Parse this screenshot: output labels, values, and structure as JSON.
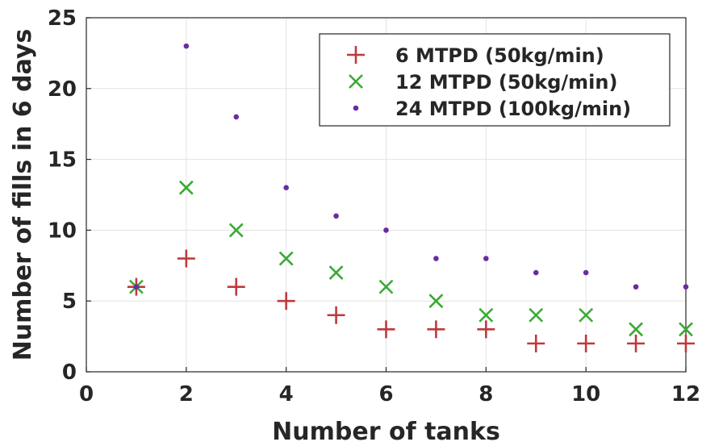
{
  "chart_data": {
    "type": "scatter",
    "title": "",
    "xlabel": "Number of tanks",
    "ylabel": "Number of fills in 6 days",
    "xlim": [
      0,
      12
    ],
    "ylim": [
      0,
      25
    ],
    "xticks": [
      0,
      2,
      4,
      6,
      8,
      10,
      12
    ],
    "yticks": [
      0,
      5,
      10,
      15,
      20,
      25
    ],
    "grid": true,
    "legend_position": "top-right",
    "x": [
      1,
      2,
      3,
      4,
      5,
      6,
      7,
      8,
      9,
      10,
      11,
      12
    ],
    "series": [
      {
        "name": "6 MTPD (50kg/min)",
        "marker": "plus",
        "color": "#c0393b",
        "values": [
          6,
          8,
          6,
          5,
          4,
          3,
          3,
          3,
          2,
          2,
          2,
          2
        ]
      },
      {
        "name": "12 MTPD (50kg/min)",
        "marker": "x",
        "color": "#3aaa35",
        "values": [
          6,
          13,
          10,
          8,
          7,
          6,
          5,
          4,
          4,
          4,
          3,
          3
        ]
      },
      {
        "name": "24 MTPD (100kg/min)",
        "marker": "dot",
        "color": "#6a2ca0",
        "values": [
          6,
          23,
          18,
          13,
          11,
          10,
          8,
          8,
          7,
          7,
          6,
          6
        ]
      }
    ]
  }
}
